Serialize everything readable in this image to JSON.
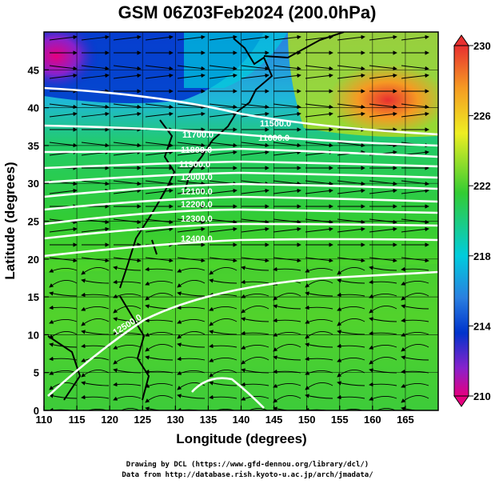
{
  "title": "GSM 06Z03Feb2024 (200.0hPa)",
  "xlabel": "Longitude (degrees)",
  "ylabel": "Latitude  (degrees)",
  "x_ticks": [
    "110",
    "115",
    "120",
    "125",
    "130",
    "135",
    "140",
    "145",
    "150",
    "155",
    "160",
    "165"
  ],
  "y_ticks": [
    "0",
    "5",
    "10",
    "15",
    "20",
    "25",
    "30",
    "35",
    "40",
    "45"
  ],
  "colorbar_ticks": [
    "230",
    "226",
    "222",
    "218",
    "214",
    "210"
  ],
  "contour_labels": [
    "11500.0",
    "11600.0",
    "11700.0",
    "11800.0",
    "11900.0",
    "12000.0",
    "12100.0",
    "12200.0",
    "12300.0",
    "12400.0",
    "12500.0"
  ],
  "credits": {
    "line1": "Drawing by DCL (https://www.gfd-dennou.org/library/dcl/)",
    "line2": "Data from http://database.rish.kyoto-u.ac.jp/arch/jmadata/"
  },
  "colors": {
    "cold_max": "#e6007f",
    "blue": "#0033cc",
    "cyan": "#00ccdd",
    "green": "#33cc33",
    "yellow": "#eeee22",
    "orange": "#f59a23",
    "red": "#e83030",
    "contour": "#ffffff",
    "vector": "#000000"
  },
  "chart_data": {
    "type": "heatmap",
    "variable": "temperature",
    "xlim": [
      110,
      170
    ],
    "ylim": [
      0,
      50
    ],
    "colorbar_range": [
      210,
      230
    ],
    "contour_variable": "geopotential height",
    "contour_levels": [
      11500,
      11600,
      11700,
      11800,
      11900,
      12000,
      12100,
      12200,
      12300,
      12400,
      12500
    ],
    "wind_vectors": "eastward westerlies in mid latitudes, trade easterlies south of 15N"
  }
}
